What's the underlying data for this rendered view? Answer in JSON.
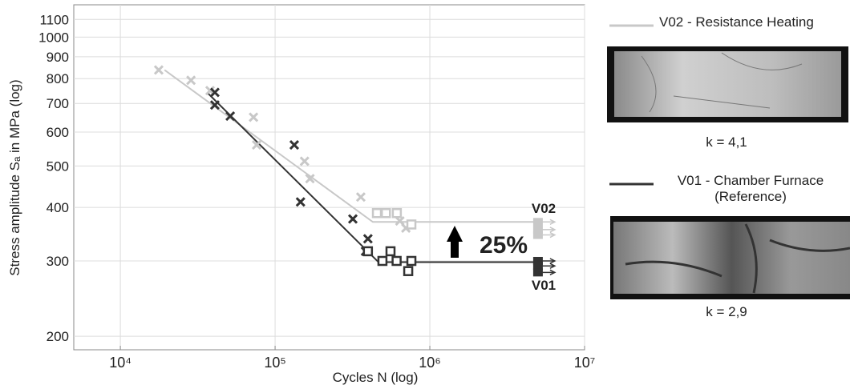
{
  "chart_data": {
    "type": "scatter",
    "x_label": "Cycles N (log)",
    "y_label": "Stress amplitude Sₐ in MPa (log)",
    "xscale": "log",
    "yscale": "log",
    "grid": true,
    "xlim": [
      5000,
      10000000
    ],
    "ylim": [
      186,
      1190
    ],
    "xticks": [
      {
        "value": 10000,
        "label": "10⁴"
      },
      {
        "value": 100000,
        "label": "10⁵"
      },
      {
        "value": 1000000,
        "label": "10⁶"
      },
      {
        "value": 10000000,
        "label": "10⁷"
      }
    ],
    "yticks": [
      200,
      300,
      400,
      500,
      600,
      700,
      800,
      900,
      1000,
      1100
    ],
    "series": [
      {
        "name": "V02 - Resistance Heating",
        "mode": "line",
        "color": "#c8c8c8",
        "x": [
          19300,
          428000,
          5000000
        ],
        "values": [
          838,
          370,
          370
        ]
      },
      {
        "name": "V01 - Chamber Furnace (Reference)",
        "mode": "line",
        "color": "#333333",
        "x": [
          36300,
          466000,
          5000000
        ],
        "values": [
          743,
          298,
          298
        ]
      },
      {
        "mode": "markers",
        "marker": "cross",
        "color": "#c8c8c8",
        "x": [
          17700,
          28600,
          38000,
          72500,
          76000,
          155000,
          168000,
          358000,
          640000,
          700000
        ],
        "values": [
          838,
          793,
          750,
          650,
          560,
          513,
          467,
          423,
          372,
          358
        ]
      },
      {
        "mode": "markers",
        "marker": "square",
        "color": "#c8c8c8",
        "x": [
          455000,
          520000,
          612000,
          760000
        ],
        "values": [
          388,
          388,
          388,
          365
        ]
      },
      {
        "mode": "markers",
        "marker": "cross",
        "color": "#333333",
        "x": [
          40800,
          40800,
          51300,
          133000,
          146000,
          318000,
          398000,
          384000
        ],
        "values": [
          743,
          694,
          654,
          560,
          412,
          376,
          338,
          316
        ]
      },
      {
        "mode": "markers",
        "marker": "square",
        "color": "#333333",
        "x": [
          398000,
          494000,
          557000,
          610000,
          725000,
          760000
        ],
        "values": [
          316,
          300,
          316,
          300,
          284,
          300
        ]
      },
      {
        "mode": "markers",
        "marker": "runout",
        "color": "#c8c8c8",
        "x": [
          5000000,
          5000000,
          5000000
        ],
        "values": [
          370,
          355,
          345
        ]
      },
      {
        "mode": "markers",
        "marker": "runout",
        "color": "#333333",
        "x": [
          5000000,
          5000000,
          5000000
        ],
        "values": [
          300,
          292,
          282
        ]
      }
    ],
    "annotations": [
      "V02",
      "V01",
      "25%"
    ]
  },
  "side_panel": {
    "captions": [
      "k = 4,1",
      "k = 2,9"
    ]
  }
}
